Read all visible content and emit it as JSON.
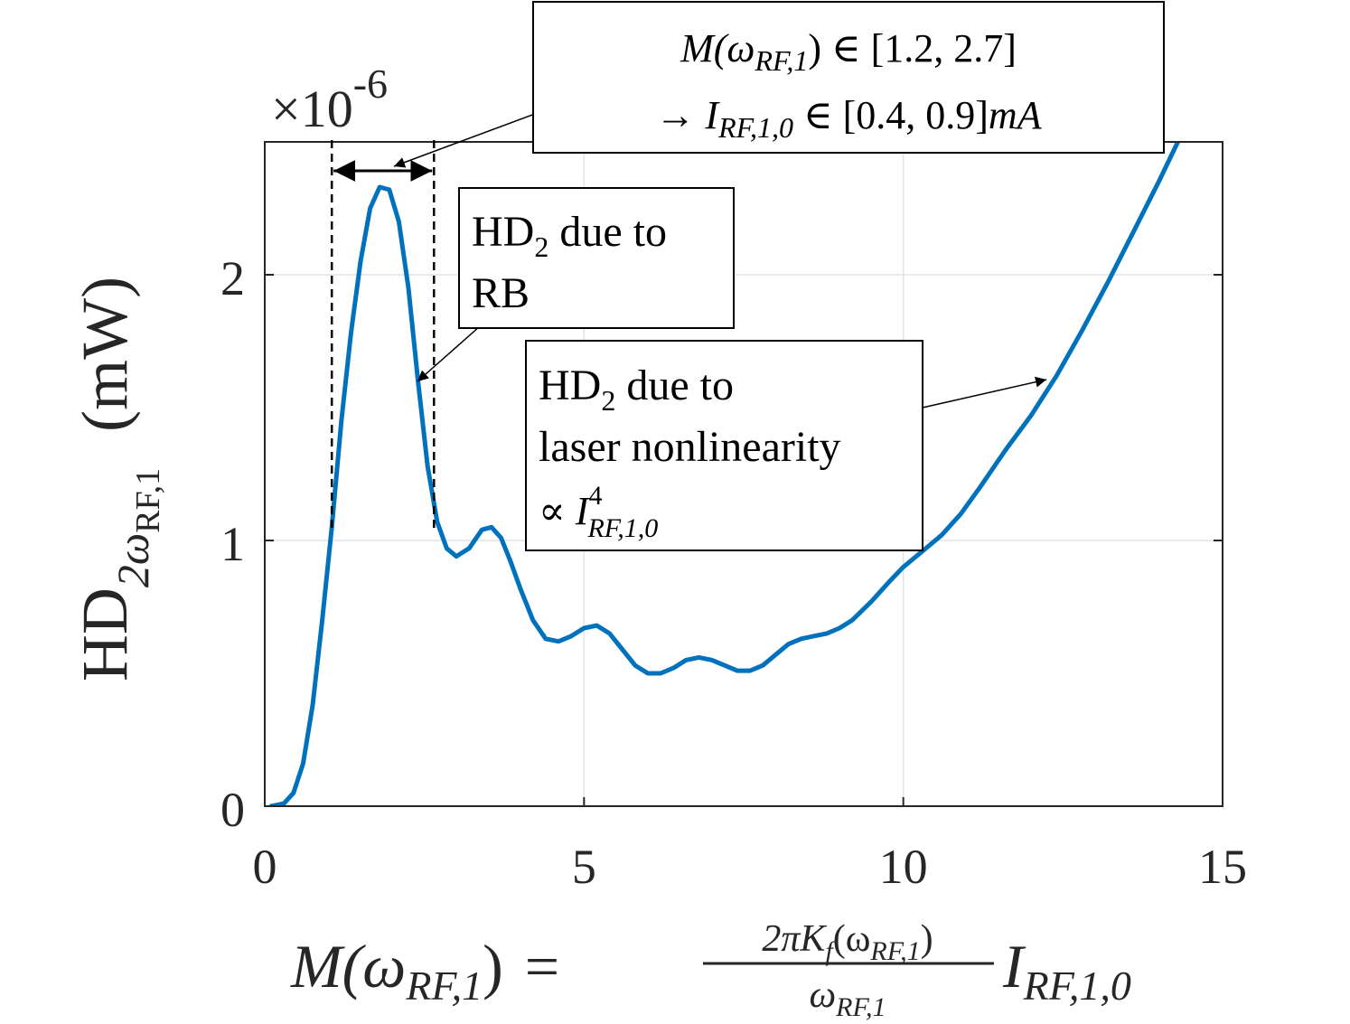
{
  "chart_data": {
    "type": "line",
    "x_range": [
      0,
      15
    ],
    "y_range": [
      0,
      2.4e-06
    ],
    "y_exponent_label": "×10",
    "y_exponent": "-6",
    "x_ticks": [
      0,
      5,
      10,
      15
    ],
    "x_tick_labels": [
      "0",
      "5",
      "10",
      "15"
    ],
    "y_ticks": [
      0,
      1,
      2
    ],
    "y_tick_labels": [
      "0",
      "1",
      "2"
    ],
    "grid": true,
    "ylabel": {
      "main": "HD",
      "sub1": "2ω",
      "sub2": "RF,1",
      "unit": "(mW)"
    },
    "xlabel": {
      "lhs": "M(ω",
      "lhs_sub": "RF,1",
      "lhs_close": ")",
      "equals": "=",
      "num": "2πK",
      "num_sub_f": "f",
      "num_arg": "(ω",
      "num_arg_sub": "RF,1",
      "num_close": ")",
      "den": "ω",
      "den_sub": "RF,1",
      "rhs": "I",
      "rhs_sub": "RF,1,0"
    },
    "series": [
      {
        "color": "#0072BD",
        "x": [
          0.1,
          0.3,
          0.45,
          0.6,
          0.75,
          0.9,
          1.05,
          1.2,
          1.35,
          1.5,
          1.65,
          1.8,
          1.95,
          2.1,
          2.25,
          2.4,
          2.55,
          2.7,
          2.85,
          3.0,
          3.2,
          3.4,
          3.55,
          3.7,
          3.85,
          4.0,
          4.2,
          4.4,
          4.6,
          4.8,
          5.0,
          5.2,
          5.4,
          5.6,
          5.8,
          6.0,
          6.2,
          6.4,
          6.6,
          6.8,
          7.0,
          7.2,
          7.4,
          7.6,
          7.8,
          8.0,
          8.2,
          8.4,
          8.6,
          8.8,
          9.0,
          9.2,
          9.5,
          9.8,
          10.0,
          10.3,
          10.6,
          10.9,
          11.2,
          11.6,
          12.0,
          12.4,
          12.8,
          13.2,
          13.6,
          14.0,
          14.3
        ],
        "y": [
          0,
          0.01,
          0.05,
          0.16,
          0.38,
          0.7,
          1.05,
          1.45,
          1.78,
          2.05,
          2.25,
          2.33,
          2.32,
          2.2,
          1.95,
          1.6,
          1.28,
          1.07,
          0.97,
          0.94,
          0.97,
          1.04,
          1.05,
          1.01,
          0.92,
          0.82,
          0.7,
          0.63,
          0.62,
          0.64,
          0.67,
          0.68,
          0.65,
          0.59,
          0.53,
          0.5,
          0.5,
          0.52,
          0.55,
          0.56,
          0.55,
          0.53,
          0.51,
          0.51,
          0.53,
          0.57,
          0.61,
          0.63,
          0.64,
          0.65,
          0.67,
          0.7,
          0.77,
          0.85,
          0.9,
          0.96,
          1.02,
          1.1,
          1.2,
          1.34,
          1.47,
          1.62,
          1.79,
          1.97,
          2.16,
          2.35,
          2.5
        ]
      }
    ],
    "range_markers": [
      1.05,
      2.65
    ],
    "annotations": {
      "box1": {
        "line1": "M(ω",
        "line1_sub": "RF,1",
        "line1_rest": ") ∈ [1.2, 2.7]",
        "line2_arrow": "→ ",
        "line2_I": "I",
        "line2_sub": "RF,1,0",
        "line2_rest": " ∈ [0.4, 0.9]",
        "line2_unit": "mA"
      },
      "box2": {
        "line1": "HD",
        "line1_sub": "2",
        "line1_rest": " due to",
        "line2": "RB"
      },
      "box3": {
        "line1": "HD",
        "line1_sub": "2",
        "line1_rest": " due to",
        "line2": "laser nonlinearity",
        "line3_prop": "∝ ",
        "line3_I": "I",
        "line3_sup": "4",
        "line3_sub": "RF,1,0"
      }
    }
  }
}
